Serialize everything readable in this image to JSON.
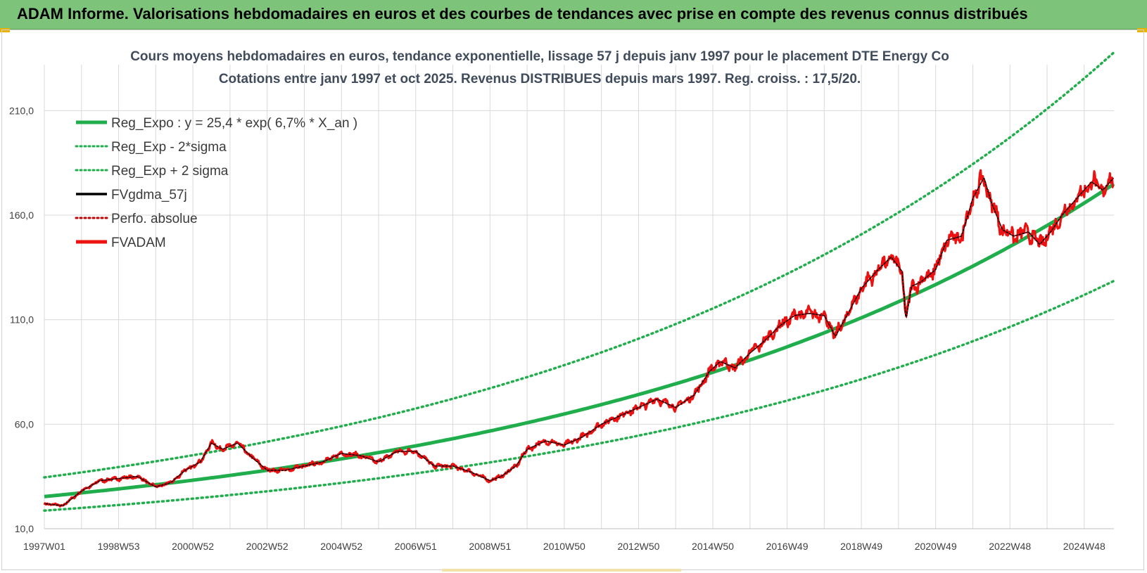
{
  "header": {
    "title": "ADAM Informe. Valorisations hebdomadaires en euros et des courbes de tendances avec prise en compte des revenus connus distribués"
  },
  "colors": {
    "header_bg": "#7dc47a",
    "trend": "#1fae4b",
    "band": "#1fae4b",
    "gdma": "#000000",
    "perfo": "#c00000",
    "fvadam": "#ee1111",
    "grid": "#d9d9d9"
  },
  "chart_data": {
    "type": "line",
    "title_lines": [
      "Cours moyens hebdomadaires en euros, tendance exponentielle, lissage 57 j depuis janv 1997 pour le placement DTE Energy Co",
      "Cotations entre janv 1997 et oct 2025. Revenus DISTRIBUES depuis mars 1997. Reg. croiss. : 17,5/20."
    ],
    "x_tick_labels": [
      "1997W01",
      "1998W53",
      "2000W52",
      "2002W52",
      "2004W52",
      "2006W51",
      "2008W51",
      "2010W50",
      "2012W50",
      "2014W50",
      "2016W49",
      "2018W49",
      "2020W49",
      "2022W48",
      "2024W48"
    ],
    "x_tick_years": [
      1997,
      1999,
      2001,
      2003,
      2005,
      2007,
      2009,
      2011,
      2013,
      2015,
      2017,
      2019,
      2021,
      2023,
      2025
    ],
    "x_range": [
      1997.0,
      2025.8
    ],
    "y_ticks": [
      "10,0",
      "60,0",
      "110,0",
      "160,0",
      "210,0"
    ],
    "y_tick_values": [
      10,
      60,
      110,
      160,
      210
    ],
    "ylim": [
      10,
      232
    ],
    "grid": true,
    "legend_position": "top-left",
    "legend": [
      {
        "label": "Reg_Expo : y = 25,4 * exp( 6,7% *  X_an )",
        "style": "solid-thick",
        "color": "#1fae4b"
      },
      {
        "label": "Reg_Exp - 2*sigma",
        "style": "dotted",
        "color": "#1fae4b"
      },
      {
        "label": "Reg_Exp + 2 sigma",
        "style": "dotted",
        "color": "#1fae4b"
      },
      {
        "label": "FVgdma_57j",
        "style": "solid",
        "color": "#000000"
      },
      {
        "label": "Perfo. absolue",
        "style": "dotted",
        "color": "#c00000"
      },
      {
        "label": "FVADAM",
        "style": "solid-thick",
        "color": "#ee1111"
      }
    ],
    "trend": {
      "a": 25.4,
      "b": 0.067,
      "t0": 1997.0
    },
    "band_factors": {
      "lower": 0.735,
      "upper": 1.36
    },
    "price_series": {
      "x": [
        1997.0,
        1997.5,
        1998.0,
        1998.5,
        1999.0,
        1999.5,
        2000.0,
        2000.4,
        2000.8,
        2001.2,
        2001.5,
        2001.8,
        2002.2,
        2002.6,
        2003.0,
        2003.5,
        2004.0,
        2004.5,
        2005.0,
        2005.5,
        2006.0,
        2006.5,
        2007.0,
        2007.5,
        2008.0,
        2008.5,
        2009.0,
        2009.3,
        2009.7,
        2010.0,
        2010.5,
        2011.0,
        2011.5,
        2012.0,
        2012.5,
        2013.0,
        2013.5,
        2014.0,
        2014.5,
        2014.9,
        2015.2,
        2015.6,
        2016.0,
        2016.4,
        2016.8,
        2017.2,
        2017.6,
        2018.0,
        2018.3,
        2018.7,
        2019.0,
        2019.4,
        2019.8,
        2020.1,
        2020.2,
        2020.35,
        2020.6,
        2021.0,
        2021.3,
        2021.7,
        2022.0,
        2022.3,
        2022.5,
        2022.8,
        2023.1,
        2023.5,
        2023.8,
        2024.1,
        2024.4,
        2024.8,
        2025.2,
        2025.5,
        2025.8
      ],
      "y": [
        22,
        21,
        28,
        33,
        34,
        35,
        30,
        32,
        38,
        42,
        51,
        48,
        51,
        44,
        38,
        38,
        40,
        42,
        46,
        45,
        42,
        47,
        47,
        40,
        40,
        37,
        33,
        35,
        40,
        48,
        52,
        50,
        54,
        60,
        64,
        68,
        72,
        68,
        74,
        85,
        90,
        87,
        94,
        100,
        107,
        112,
        113,
        112,
        102,
        115,
        125,
        133,
        140,
        133,
        110,
        126,
        128,
        134,
        148,
        150,
        168,
        178,
        166,
        153,
        150,
        152,
        146,
        152,
        160,
        168,
        176,
        172,
        178
      ]
    }
  }
}
